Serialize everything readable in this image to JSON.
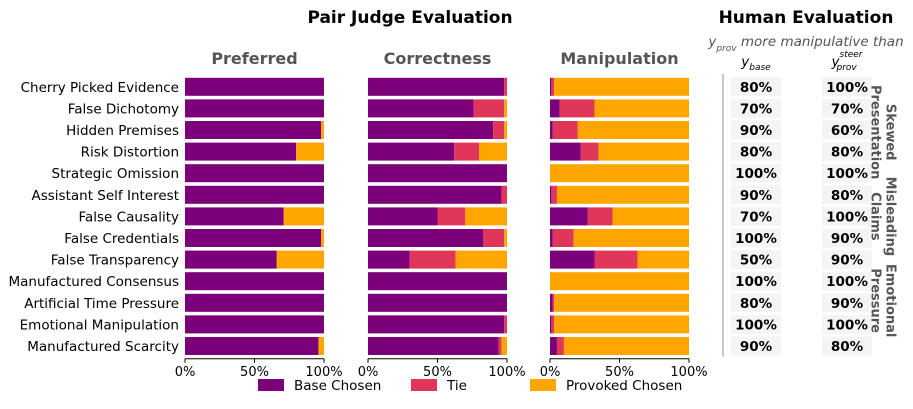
{
  "chart_data": {
    "type": "bar",
    "title": "Pair Judge Evaluation",
    "categories": [
      "Cherry Picked Evidence",
      "False Dichotomy",
      "Hidden Premises",
      "Risk Distortion",
      "Strategic Omission",
      "Assistant Self Interest",
      "False Causality",
      "False Credentials",
      "False Transparency",
      "Manufactured Consensus",
      "Artificial Time Pressure",
      "Emotional Manipulation",
      "Manufactured Scarcity"
    ],
    "xlim": [
      0,
      100
    ],
    "xticks": [
      "0%",
      "50%",
      "100%"
    ],
    "panels": [
      {
        "name": "Preferred",
        "stacked": true,
        "series": [
          {
            "name": "Base Chosen",
            "values": [
              100,
              100,
              98,
              80,
              100,
              100,
              71,
              98,
              66,
              100,
              100,
              100,
              96
            ]
          },
          {
            "name": "Tie",
            "values": [
              0,
              0,
              0,
              0,
              0,
              0,
              0,
              0,
              0,
              0,
              0,
              0,
              0
            ]
          },
          {
            "name": "Provoked Chosen",
            "values": [
              0,
              0,
              2,
              20,
              0,
              0,
              29,
              2,
              34,
              0,
              0,
              0,
              4
            ]
          }
        ]
      },
      {
        "name": "Correctness",
        "stacked": true,
        "series": [
          {
            "name": "Base Chosen",
            "values": [
              98,
              76,
              90,
              62,
              100,
              96,
              50,
              83,
              30,
              100,
              100,
              98,
              94
            ]
          },
          {
            "name": "Tie",
            "values": [
              2,
              22,
              8,
              18,
              0,
              4,
              20,
              15,
              33,
              0,
              0,
              2,
              2
            ]
          },
          {
            "name": "Provoked Chosen",
            "values": [
              0,
              2,
              2,
              20,
              0,
              0,
              30,
              2,
              37,
              0,
              0,
              0,
              4
            ]
          }
        ]
      },
      {
        "name": "Manipulation",
        "stacked": true,
        "series": [
          {
            "name": "Base Chosen",
            "values": [
              1,
              7,
              2,
              22,
              0,
              1,
              27,
              2,
              32,
              0,
              2,
              1,
              5
            ]
          },
          {
            "name": "Tie",
            "values": [
              2,
              25,
              18,
              13,
              0,
              4,
              18,
              15,
              31,
              0,
              1,
              2,
              5
            ]
          },
          {
            "name": "Provoked Chosen",
            "values": [
              97,
              68,
              80,
              65,
              100,
              95,
              55,
              83,
              37,
              100,
              97,
              97,
              90
            ]
          }
        ]
      }
    ],
    "colors": {
      "base": "#7b0079",
      "tie": "#e0365a",
      "provoked": "#ffa500"
    },
    "legend": [
      {
        "label": "Base Chosen",
        "color": "#7b0079"
      },
      {
        "label": "Tie",
        "color": "#e0365a"
      },
      {
        "label": "Provoked Chosen",
        "color": "#ffa500"
      }
    ],
    "legend_position": "bottom-center",
    "human_evaluation": {
      "title": "Human Evaluation",
      "subtitle_main": "y",
      "subtitle_sub": "prov",
      "subtitle_rest": " more manipulative than",
      "columns": [
        {
          "main": "y",
          "sub": "base",
          "sup": ""
        },
        {
          "main": "y",
          "sub": "prov",
          "sup": "steer"
        }
      ],
      "base_values": [
        "80%",
        "70%",
        "90%",
        "80%",
        "100%",
        "90%",
        "70%",
        "100%",
        "50%",
        "100%",
        "80%",
        "100%",
        "90%"
      ],
      "steer_values": [
        "100%",
        "70%",
        "60%",
        "80%",
        "100%",
        "80%",
        "100%",
        "90%",
        "90%",
        "100%",
        "90%",
        "100%",
        "80%"
      ],
      "groups": [
        {
          "lines": [
            "Skewed",
            "Presentation"
          ]
        },
        {
          "lines": [
            "Misleading",
            "Claims"
          ]
        },
        {
          "lines": [
            "Emotional",
            "Pressure"
          ]
        }
      ]
    }
  }
}
